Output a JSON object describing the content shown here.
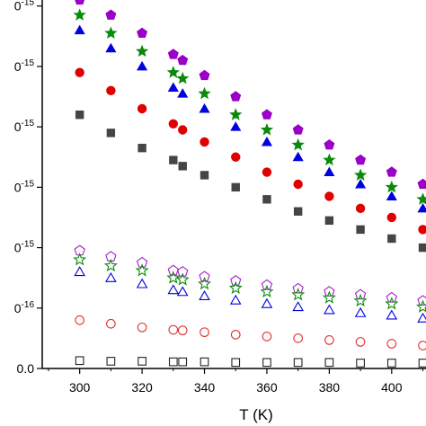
{
  "chart_data": {
    "type": "scatter",
    "title": "",
    "xlabel": "T (K)",
    "ylabel": "",
    "xlim": [
      288,
      411
    ],
    "ylim": [
      0,
      6.1
    ],
    "x_ticks": [
      "300",
      "320",
      "340",
      "360",
      "380",
      "400"
    ],
    "y_tick_labels": [
      {
        "value": 0.0,
        "label": "0.0"
      },
      {
        "value": 1.0,
        "label": "-16"
      },
      {
        "value": 2.0,
        "label": "-15"
      },
      {
        "value": 3.0,
        "label": "-15"
      },
      {
        "value": 4.0,
        "label": "-15"
      },
      {
        "value": 5.0,
        "label": "-15"
      },
      {
        "value": 6.0,
        "label": "-15"
      }
    ],
    "y_tick_prefix": "0",
    "grid": false,
    "legend": "none",
    "series": [
      {
        "marker": "pentagon",
        "filled": true,
        "color": "#9a00c8",
        "x": [
          300,
          310,
          320,
          330,
          333,
          340,
          350,
          360,
          370,
          380,
          390,
          400,
          410
        ],
        "y": [
          6.1,
          5.85,
          5.55,
          5.2,
          5.1,
          4.85,
          4.5,
          4.2,
          3.95,
          3.7,
          3.45,
          3.25,
          3.05
        ]
      },
      {
        "marker": "star",
        "filled": true,
        "color": "#0a8a0a",
        "x": [
          300,
          310,
          320,
          330,
          333,
          340,
          350,
          360,
          370,
          380,
          390,
          400,
          410
        ],
        "y": [
          5.85,
          5.55,
          5.25,
          4.9,
          4.8,
          4.55,
          4.2,
          3.95,
          3.7,
          3.45,
          3.2,
          3.0,
          2.8
        ]
      },
      {
        "marker": "triangle",
        "filled": true,
        "color": "#0000e0",
        "x": [
          300,
          310,
          320,
          330,
          333,
          340,
          350,
          360,
          370,
          380,
          390,
          400,
          410
        ],
        "y": [
          5.6,
          5.3,
          5.0,
          4.65,
          4.55,
          4.3,
          4.0,
          3.75,
          3.5,
          3.25,
          3.05,
          2.85,
          2.65
        ]
      },
      {
        "marker": "circle",
        "filled": true,
        "color": "#e00000",
        "x": [
          300,
          310,
          320,
          330,
          333,
          340,
          350,
          360,
          370,
          380,
          390,
          400,
          410
        ],
        "y": [
          4.9,
          4.6,
          4.3,
          4.05,
          3.95,
          3.75,
          3.5,
          3.25,
          3.05,
          2.85,
          2.65,
          2.5,
          2.3
        ]
      },
      {
        "marker": "square",
        "filled": true,
        "color": "#454545",
        "x": [
          300,
          310,
          320,
          330,
          333,
          340,
          350,
          360,
          370,
          380,
          390,
          400,
          410
        ],
        "y": [
          4.2,
          3.9,
          3.65,
          3.45,
          3.35,
          3.2,
          3.0,
          2.8,
          2.6,
          2.45,
          2.3,
          2.15,
          2.0
        ]
      },
      {
        "marker": "pentagon",
        "filled": false,
        "color": "#a020c8",
        "x": [
          300,
          310,
          320,
          330,
          333,
          340,
          350,
          360,
          370,
          380,
          390,
          400,
          410
        ],
        "y": [
          1.95,
          1.85,
          1.75,
          1.62,
          1.6,
          1.52,
          1.45,
          1.38,
          1.32,
          1.27,
          1.22,
          1.17,
          1.12
        ]
      },
      {
        "marker": "star",
        "filled": false,
        "color": "#0a8a0a",
        "x": [
          300,
          310,
          320,
          330,
          333,
          340,
          350,
          360,
          370,
          380,
          390,
          400,
          410
        ],
        "y": [
          1.8,
          1.7,
          1.62,
          1.5,
          1.47,
          1.4,
          1.33,
          1.27,
          1.22,
          1.17,
          1.12,
          1.07,
          1.02
        ]
      },
      {
        "marker": "triangle",
        "filled": false,
        "color": "#0000e0",
        "x": [
          300,
          310,
          320,
          330,
          333,
          340,
          350,
          360,
          370,
          380,
          390,
          400,
          410
        ],
        "y": [
          1.6,
          1.5,
          1.4,
          1.3,
          1.27,
          1.2,
          1.13,
          1.07,
          1.02,
          0.97,
          0.92,
          0.88,
          0.83
        ]
      },
      {
        "marker": "circle",
        "filled": false,
        "color": "#e03030",
        "x": [
          300,
          310,
          320,
          330,
          333,
          340,
          350,
          360,
          370,
          380,
          390,
          400,
          410
        ],
        "y": [
          0.8,
          0.74,
          0.68,
          0.64,
          0.63,
          0.6,
          0.56,
          0.53,
          0.5,
          0.47,
          0.44,
          0.41,
          0.38
        ]
      },
      {
        "marker": "square",
        "filled": false,
        "color": "#222222",
        "x": [
          300,
          310,
          320,
          330,
          333,
          340,
          350,
          360,
          370,
          380,
          390,
          400,
          410
        ],
        "y": [
          0.13,
          0.12,
          0.12,
          0.11,
          0.11,
          0.11,
          0.1,
          0.1,
          0.1,
          0.1,
          0.09,
          0.09,
          0.09
        ]
      }
    ]
  }
}
